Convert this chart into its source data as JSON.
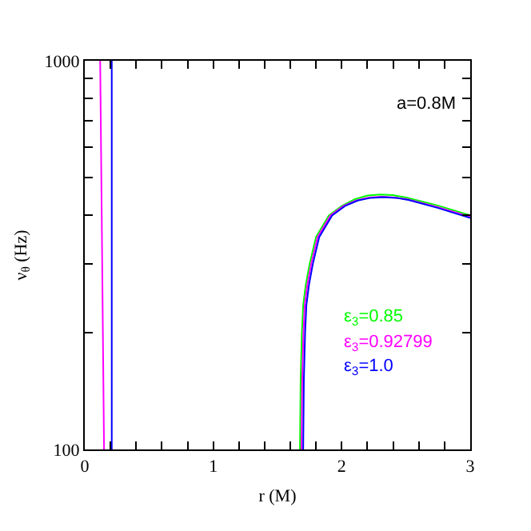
{
  "chart_data": {
    "type": "line",
    "xlabel": "r (M)",
    "ylabel": "ν$_{θ}$ (Hz)",
    "log": "y",
    "xlim": [
      0,
      3
    ],
    "xticks": [
      0,
      {
        "value": 0.2,
        "label": null
      },
      {
        "value": 0.4,
        "label": null
      },
      {
        "value": 0.6,
        "label": null
      },
      {
        "value": 0.8,
        "label": null
      },
      1,
      {
        "value": 1.2,
        "label": null
      },
      {
        "value": 1.4,
        "label": null
      },
      {
        "value": 1.6,
        "label": null
      },
      {
        "value": 1.8,
        "label": null
      },
      2,
      {
        "value": 2.2,
        "label": null
      },
      {
        "value": 2.4,
        "label": null
      },
      {
        "value": 2.6,
        "label": null
      },
      {
        "value": 2.8,
        "label": null
      },
      3
    ],
    "ylim": [
      100,
      1000
    ],
    "yticks": [
      100,
      {
        "value": 200,
        "label": null
      },
      {
        "value": 300,
        "label": null
      },
      {
        "value": 400,
        "label": null
      },
      {
        "value": 500,
        "label": null
      },
      {
        "value": 600,
        "label": null
      },
      {
        "value": 700,
        "label": null
      },
      {
        "value": 800,
        "label": null
      },
      {
        "value": 900,
        "label": null
      },
      1000
    ],
    "grid": false,
    "marker": "none",
    "line_style": "solid",
    "annotations": [
      "a=0.8M"
    ],
    "series": [
      {
        "name": "ε$_{3}$=0.85",
        "color": "#00ff00",
        "x": [
          1.675,
          1.68,
          1.69,
          1.7,
          1.72,
          1.75,
          1.8,
          1.9,
          2.0,
          2.1,
          2.2,
          2.3,
          2.4,
          2.5,
          2.75,
          3.0
        ],
        "values": [
          100,
          150,
          200,
          235,
          265,
          300,
          352,
          400,
          423,
          440,
          450,
          453,
          451,
          445,
          424,
          400
        ]
      },
      {
        "name": "ε$_{3}$=0.92799",
        "color": "#ff00ff",
        "x": [
          0.12,
          0.15,
          null,
          1.687,
          1.692,
          1.702,
          1.712,
          1.732,
          1.762,
          1.812,
          1.912,
          2.012,
          2.112,
          2.212,
          2.312,
          2.412,
          2.512,
          2.75,
          3.0
        ],
        "values": [
          1000,
          100,
          null,
          100,
          150,
          200,
          235,
          265,
          300,
          352,
          400,
          423,
          437,
          445,
          447,
          445,
          440,
          420,
          397
        ]
      },
      {
        "name": "ε$_{3}$=1.0",
        "color": "#0000ff",
        "x": [
          0.21,
          0.21,
          null,
          1.7,
          1.705,
          1.715,
          1.725,
          1.745,
          1.775,
          1.825,
          1.925,
          2.025,
          2.125,
          2.225,
          2.325,
          2.425,
          2.525,
          2.75,
          3.0
        ],
        "values": [
          1000,
          100,
          null,
          100,
          150,
          200,
          235,
          265,
          300,
          352,
          400,
          423,
          437,
          444,
          446,
          444,
          438,
          418,
          394
        ]
      }
    ]
  }
}
